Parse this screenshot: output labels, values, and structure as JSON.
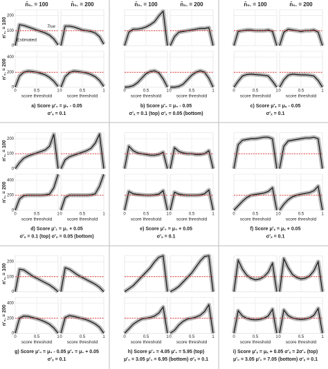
{
  "col_headers": [
    "n̄₀. = 100",
    "n̄₀. = 200"
  ],
  "legend": {
    "true": "True",
    "estimated": "Estimated"
  },
  "x_label": "score threshold",
  "x": [
    0,
    0.1,
    0.2,
    0.3,
    0.4,
    0.5,
    0.6,
    0.7,
    0.8,
    0.9,
    1
  ],
  "xticks": [
    0,
    0.5,
    1
  ],
  "panel_rows": [
    {
      "label": "n'₀. = 100",
      "ylim": [
        0,
        240
      ],
      "yticks": [
        0,
        100,
        200
      ],
      "true_value": 100
    },
    {
      "label": "n'₀. = 200",
      "ylim": [
        0,
        480
      ],
      "yticks": [
        0,
        200,
        400
      ],
      "true_value": 200
    }
  ],
  "chart_data": [
    {
      "type": "line",
      "caption": [
        "a) Score  μ'₁ = μ₁ - 0.05",
        "σ'ₓ = 0.1"
      ],
      "panels": [
        [
          0,
          140,
          135,
          125,
          115,
          105,
          95,
          85,
          70,
          45,
          5
        ],
        [
          0,
          130,
          130,
          125,
          115,
          105,
          100,
          95,
          85,
          60,
          10
        ],
        [
          0,
          150,
          200,
          215,
          210,
          200,
          185,
          165,
          130,
          80,
          10
        ],
        [
          0,
          140,
          195,
          215,
          210,
          200,
          190,
          170,
          140,
          90,
          10
        ]
      ]
    },
    {
      "type": "line",
      "caption": [
        "b) Score  μ'₀ = μ₀ - 0.05",
        "σ'ₓ = 0.1 (top)   σ'ₓ = 0.05 (bottom)"
      ],
      "panels": [
        [
          0,
          90,
          110,
          110,
          115,
          125,
          140,
          160,
          200,
          230,
          0
        ],
        [
          0,
          60,
          90,
          95,
          100,
          105,
          110,
          115,
          115,
          120,
          0
        ],
        [
          0,
          5,
          20,
          60,
          120,
          180,
          210,
          220,
          190,
          110,
          0
        ],
        [
          0,
          0,
          10,
          40,
          100,
          160,
          200,
          220,
          200,
          120,
          0
        ]
      ]
    },
    {
      "type": "line",
      "caption": [
        "c) Score  μ'ₓ = μₓ - 0.05",
        "σ'ₓ = 0.1"
      ],
      "panels": [
        [
          0,
          95,
          100,
          105,
          105,
          100,
          100,
          100,
          105,
          95,
          0
        ],
        [
          0,
          90,
          110,
          105,
          100,
          95,
          100,
          100,
          105,
          90,
          0
        ],
        [
          0,
          80,
          150,
          170,
          175,
          170,
          165,
          160,
          150,
          80,
          0
        ],
        [
          0,
          100,
          160,
          175,
          170,
          165,
          165,
          160,
          150,
          90,
          0
        ]
      ]
    },
    {
      "type": "line",
      "caption": [
        "d) Score  μ'₁ = μ₁ + 0.05",
        "σ'ₓ = 0.1 (top)   σ'ₓ = 0.05 (bottom)"
      ],
      "panels": [
        [
          0,
          40,
          70,
          85,
          95,
          105,
          115,
          125,
          150,
          230,
          0
        ],
        [
          0,
          60,
          80,
          90,
          100,
          110,
          120,
          135,
          170,
          230,
          0
        ],
        [
          0,
          150,
          195,
          200,
          200,
          200,
          200,
          205,
          215,
          300,
          480
        ],
        [
          0,
          170,
          200,
          200,
          200,
          200,
          200,
          205,
          220,
          320,
          480
        ]
      ]
    },
    {
      "type": "line",
      "caption": [
        "e) Score  μ'₀ = μ₀ + 0.05",
        "σ'ₓ = 0.1"
      ],
      "panels": [
        [
          0,
          150,
          120,
          105,
          100,
          95,
          90,
          90,
          95,
          110,
          0
        ],
        [
          0,
          140,
          115,
          105,
          100,
          100,
          95,
          95,
          100,
          120,
          0
        ],
        [
          0,
          250,
          220,
          210,
          205,
          200,
          200,
          205,
          215,
          260,
          0
        ],
        [
          0,
          240,
          215,
          205,
          200,
          200,
          200,
          205,
          220,
          270,
          0
        ]
      ]
    },
    {
      "type": "line",
      "caption": [
        "f) Score  μ'ₓ = μₓ + 0.05",
        "σ'ₓ = 0.1"
      ],
      "panels": [
        [
          0,
          160,
          190,
          195,
          200,
          200,
          205,
          210,
          210,
          200,
          0
        ],
        [
          0,
          150,
          185,
          190,
          195,
          200,
          205,
          205,
          210,
          200,
          0
        ],
        [
          0,
          60,
          120,
          170,
          200,
          210,
          220,
          230,
          250,
          300,
          0
        ],
        [
          0,
          80,
          140,
          180,
          200,
          215,
          225,
          235,
          260,
          320,
          0
        ]
      ]
    },
    {
      "type": "line",
      "caption": [
        "g) Score  μ'₀ = μ₀ - 0.05   μ'₁ = μ₁ + 0.05",
        "σ'ₓ = 0.1"
      ],
      "panels": [
        [
          0,
          150,
          145,
          125,
          105,
          90,
          75,
          60,
          45,
          25,
          0
        ],
        [
          0,
          160,
          150,
          130,
          110,
          95,
          80,
          65,
          50,
          30,
          0
        ],
        [
          0,
          200,
          230,
          225,
          210,
          195,
          175,
          150,
          120,
          70,
          0
        ],
        [
          0,
          210,
          235,
          225,
          210,
          195,
          180,
          155,
          125,
          80,
          0
        ]
      ]
    },
    {
      "type": "line",
      "caption": [
        "h) Score  μ'₀ = 4.05   μ'₁ = 5.95 (top)",
        "μ'₀ = 3.05   μ'₁ = 6.95 (bottom)   σ'ₓ = 0.1"
      ],
      "panels": [
        [
          0,
          20,
          40,
          70,
          100,
          130,
          160,
          200,
          230,
          240,
          0
        ],
        [
          0,
          15,
          35,
          65,
          95,
          125,
          165,
          205,
          235,
          240,
          0
        ],
        [
          0,
          60,
          120,
          160,
          190,
          200,
          210,
          230,
          270,
          350,
          0
        ],
        [
          0,
          40,
          110,
          160,
          190,
          200,
          215,
          240,
          290,
          380,
          0
        ]
      ]
    },
    {
      "type": "line",
      "caption": [
        "i) Score  μ'ₓ = μₓ + 0.05   σ'ₓ = 2σ'₀ (top)",
        "μ'₀ = 3.05   μ'₁ = 7.05 (bottom)   σ'ₓ = 0.1"
      ],
      "panels": [
        [
          0,
          210,
          150,
          110,
          90,
          80,
          85,
          100,
          130,
          190,
          0
        ],
        [
          0,
          220,
          160,
          115,
          95,
          85,
          90,
          105,
          140,
          200,
          0
        ],
        [
          0,
          300,
          230,
          200,
          185,
          180,
          185,
          200,
          230,
          320,
          0
        ],
        [
          0,
          310,
          235,
          205,
          190,
          185,
          190,
          205,
          240,
          330,
          0
        ]
      ]
    }
  ]
}
